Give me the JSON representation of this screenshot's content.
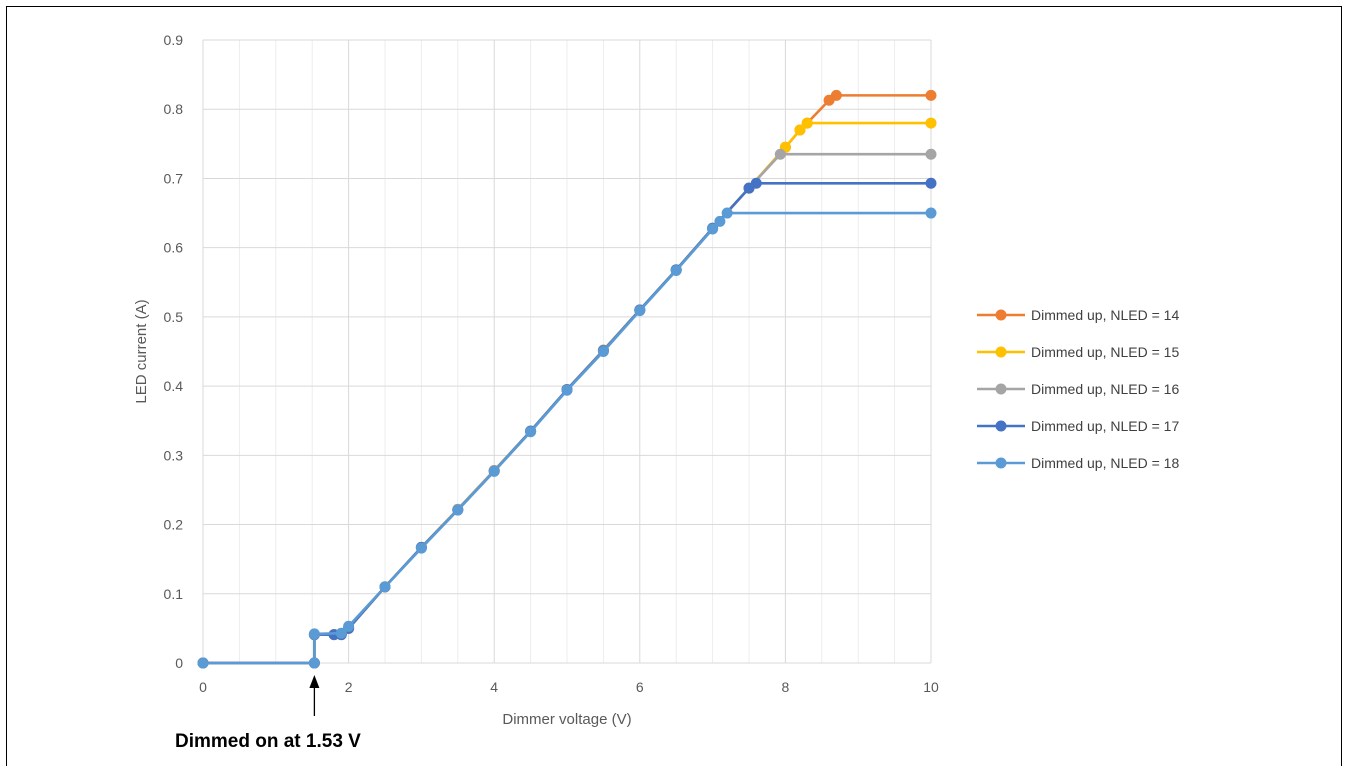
{
  "chart_data": {
    "type": "line",
    "title": "",
    "xlabel": "Dimmer voltage (V)",
    "ylabel": "LED current (A)",
    "xlim": [
      0,
      10
    ],
    "ylim": [
      0,
      0.9
    ],
    "xticks": [
      "0",
      "2",
      "4",
      "6",
      "8",
      "10"
    ],
    "yticks": [
      "0",
      "0.1",
      "0.2",
      "0.3",
      "0.4",
      "0.5",
      "0.6",
      "0.7",
      "0.8",
      "0.9"
    ],
    "grid": true,
    "legend_position": "right",
    "annotation": {
      "text": "Dimmed on at 1.53 V",
      "x": 1.53,
      "y": 0
    },
    "series": [
      {
        "name": "Dimmed up, NLED = 14",
        "color": "#ED7D31",
        "points": [
          [
            0,
            0
          ],
          [
            1.53,
            0
          ],
          [
            1.53,
            0.041
          ],
          [
            1.8,
            0.041
          ],
          [
            1.9,
            0.041
          ],
          [
            2,
            0.05
          ],
          [
            2.5,
            0.11
          ],
          [
            3,
            0.167
          ],
          [
            3.5,
            0.222
          ],
          [
            4,
            0.278
          ],
          [
            4.5,
            0.335
          ],
          [
            5,
            0.395
          ],
          [
            5.5,
            0.452
          ],
          [
            6,
            0.51
          ],
          [
            6.5,
            0.568
          ],
          [
            7,
            0.628
          ],
          [
            7.5,
            0.686
          ],
          [
            8,
            0.745
          ],
          [
            8.2,
            0.77
          ],
          [
            8.3,
            0.78
          ],
          [
            8.6,
            0.813
          ],
          [
            8.7,
            0.82
          ],
          [
            10,
            0.82
          ]
        ]
      },
      {
        "name": "Dimmed up, NLED = 15",
        "color": "#FFC000",
        "points": [
          [
            0,
            0
          ],
          [
            1.53,
            0
          ],
          [
            1.53,
            0.041
          ],
          [
            1.8,
            0.041
          ],
          [
            1.9,
            0.041
          ],
          [
            2,
            0.05
          ],
          [
            2.5,
            0.11
          ],
          [
            3,
            0.167
          ],
          [
            3.5,
            0.222
          ],
          [
            4,
            0.278
          ],
          [
            4.5,
            0.335
          ],
          [
            5,
            0.395
          ],
          [
            5.5,
            0.452
          ],
          [
            6,
            0.51
          ],
          [
            6.5,
            0.568
          ],
          [
            7,
            0.628
          ],
          [
            7.5,
            0.686
          ],
          [
            8,
            0.745
          ],
          [
            8.2,
            0.77
          ],
          [
            8.3,
            0.78
          ],
          [
            10,
            0.78
          ]
        ]
      },
      {
        "name": "Dimmed up, NLED = 16",
        "color": "#A5A5A5",
        "points": [
          [
            0,
            0
          ],
          [
            1.53,
            0
          ],
          [
            1.53,
            0.041
          ],
          [
            1.8,
            0.041
          ],
          [
            1.9,
            0.041
          ],
          [
            2,
            0.05
          ],
          [
            2.5,
            0.11
          ],
          [
            3,
            0.167
          ],
          [
            3.5,
            0.222
          ],
          [
            4,
            0.278
          ],
          [
            4.5,
            0.335
          ],
          [
            5,
            0.395
          ],
          [
            5.5,
            0.452
          ],
          [
            6,
            0.51
          ],
          [
            6.5,
            0.568
          ],
          [
            7,
            0.628
          ],
          [
            7.5,
            0.686
          ],
          [
            7.93,
            0.735
          ],
          [
            10,
            0.735
          ]
        ]
      },
      {
        "name": "Dimmed up, NLED = 17",
        "color": "#4472C4",
        "points": [
          [
            0,
            0
          ],
          [
            1.53,
            0
          ],
          [
            1.53,
            0.041
          ],
          [
            1.8,
            0.041
          ],
          [
            1.9,
            0.041
          ],
          [
            2,
            0.05
          ],
          [
            2.5,
            0.11
          ],
          [
            3,
            0.167
          ],
          [
            3.5,
            0.221
          ],
          [
            4,
            0.277
          ],
          [
            4.5,
            0.335
          ],
          [
            5,
            0.395
          ],
          [
            5.5,
            0.451
          ],
          [
            6,
            0.51
          ],
          [
            6.5,
            0.568
          ],
          [
            7,
            0.628
          ],
          [
            7.5,
            0.686
          ],
          [
            7.6,
            0.693
          ],
          [
            10,
            0.693
          ]
        ]
      },
      {
        "name": "Dimmed up, NLED = 18",
        "color": "#5B9BD5",
        "points": [
          [
            0,
            0
          ],
          [
            1.53,
            0
          ],
          [
            1.53,
            0.042
          ],
          [
            1.9,
            0.043
          ],
          [
            2,
            0.053
          ],
          [
            2.5,
            0.11
          ],
          [
            3,
            0.166
          ],
          [
            3.5,
            0.221
          ],
          [
            4,
            0.277
          ],
          [
            4.5,
            0.334
          ],
          [
            5,
            0.394
          ],
          [
            5.5,
            0.45
          ],
          [
            6,
            0.509
          ],
          [
            6.5,
            0.567
          ],
          [
            7,
            0.627
          ],
          [
            7.1,
            0.638
          ],
          [
            7.2,
            0.65
          ],
          [
            10,
            0.65
          ]
        ]
      }
    ]
  }
}
